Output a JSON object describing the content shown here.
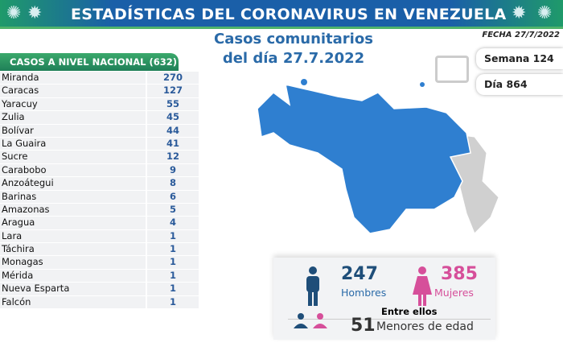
{
  "header": {
    "title": "ESTADÍSTICAS DEL CORONAVIRUS EN VENEZUELA"
  },
  "subtitle": {
    "line1": "Casos comunitarios",
    "line2": "del día 27.7.2022"
  },
  "fecha": "FECHA 27/7/2022",
  "semana": "Semana 124",
  "dia": "Día 864",
  "table": {
    "title": "CASOS A NIVEL NACIONAL (632)",
    "rows": [
      {
        "name": "Miranda",
        "value": "270"
      },
      {
        "name": "Caracas",
        "value": "127"
      },
      {
        "name": "Yaracuy",
        "value": "55"
      },
      {
        "name": "Zulia",
        "value": "45"
      },
      {
        "name": "Bolívar",
        "value": "44"
      },
      {
        "name": "La Guaira",
        "value": "41"
      },
      {
        "name": "Sucre",
        "value": "12"
      },
      {
        "name": "Carabobo",
        "value": "9"
      },
      {
        "name": "Anzoátegui",
        "value": "8"
      },
      {
        "name": "Barinas",
        "value": "6"
      },
      {
        "name": "Amazonas",
        "value": "5"
      },
      {
        "name": "Aragua",
        "value": "4"
      },
      {
        "name": "Lara",
        "value": "1"
      },
      {
        "name": "Táchira",
        "value": "1"
      },
      {
        "name": "Monagas",
        "value": "1"
      },
      {
        "name": "Mérida",
        "value": "1"
      },
      {
        "name": "Nueva Esparta",
        "value": "1"
      },
      {
        "name": "Falcón",
        "value": "1"
      }
    ]
  },
  "gender": {
    "men": "247",
    "men_label": "Hombres",
    "women": "385",
    "women_label": "Mujeres",
    "minors_intro": "Entre ellos",
    "minors": "51",
    "minors_label": "Menores de edad"
  },
  "colors": {
    "men": "#1f4e79",
    "women": "#d64f9a",
    "map_affected": "#2f7fd0",
    "map_unaffected": "#d0d0d0"
  }
}
